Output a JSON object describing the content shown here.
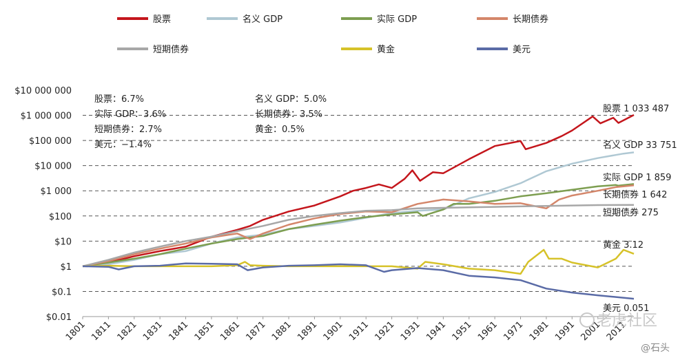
{
  "chart_data": {
    "type": "line",
    "yscale": "log",
    "ylim": [
      0.01,
      10000000
    ],
    "xlim": [
      1801,
      2015
    ],
    "grid": "horizontal-dashed",
    "legend_placement": "top",
    "ytick_labels": [
      "$10 000 000",
      "$1 000 000",
      "$100 000",
      "$10 000",
      "$1 000",
      "$100",
      "$10",
      "$1",
      "$0.1",
      "$0.01"
    ],
    "ytick_values": [
      10000000,
      1000000,
      100000,
      10000,
      1000,
      100,
      10,
      1,
      0.1,
      0.01
    ],
    "xtick_labels": [
      "1801",
      "1811",
      "1821",
      "1831",
      "1841",
      "1851",
      "1861",
      "1871",
      "1881",
      "1891",
      "1901",
      "1911",
      "1921",
      "1931",
      "1941",
      "1951",
      "1961",
      "1971",
      "1981",
      "1991",
      "2001",
      "2011"
    ],
    "notes_left": [
      "股票：6.7%",
      "实际 GDP：3.6%",
      "短期债券：2.7%",
      "美元：−1.4%"
    ],
    "notes_right": [
      "名义 GDP：5.0%",
      "长期债券：3.5%",
      "黄金：0.5%"
    ],
    "series": [
      {
        "name": "股票",
        "color": "#c4161c",
        "end_label": "股票 1 033 487",
        "points": [
          [
            1801,
            1
          ],
          [
            1811,
            1.4
          ],
          [
            1821,
            2.5
          ],
          [
            1831,
            4
          ],
          [
            1841,
            6
          ],
          [
            1851,
            15
          ],
          [
            1861,
            28
          ],
          [
            1866,
            40
          ],
          [
            1871,
            70
          ],
          [
            1881,
            150
          ],
          [
            1891,
            260
          ],
          [
            1901,
            600
          ],
          [
            1906,
            1000
          ],
          [
            1911,
            1300
          ],
          [
            1916,
            1800
          ],
          [
            1921,
            1300
          ],
          [
            1926,
            3000
          ],
          [
            1929,
            6500
          ],
          [
            1932,
            2500
          ],
          [
            1937,
            5500
          ],
          [
            1941,
            5000
          ],
          [
            1951,
            18000
          ],
          [
            1961,
            60000
          ],
          [
            1971,
            95000
          ],
          [
            1973,
            45000
          ],
          [
            1981,
            80000
          ],
          [
            1987,
            150000
          ],
          [
            1991,
            250000
          ],
          [
            1999,
            900000
          ],
          [
            2002,
            480000
          ],
          [
            2007,
            800000
          ],
          [
            2009,
            500000
          ],
          [
            2015,
            1033487
          ]
        ]
      },
      {
        "name": "名义 GDP",
        "color": "#afc8d3",
        "end_label": "名义 GDP 33 751",
        "points": [
          [
            1801,
            1
          ],
          [
            1811,
            1.2
          ],
          [
            1821,
            1.8
          ],
          [
            1831,
            3
          ],
          [
            1841,
            4
          ],
          [
            1851,
            8
          ],
          [
            1861,
            14
          ],
          [
            1871,
            18
          ],
          [
            1881,
            30
          ],
          [
            1891,
            40
          ],
          [
            1901,
            55
          ],
          [
            1911,
            85
          ],
          [
            1921,
            130
          ],
          [
            1931,
            160
          ],
          [
            1941,
            180
          ],
          [
            1951,
            500
          ],
          [
            1961,
            900
          ],
          [
            1971,
            2000
          ],
          [
            1981,
            6000
          ],
          [
            1991,
            12000
          ],
          [
            2001,
            20000
          ],
          [
            2011,
            30000
          ],
          [
            2015,
            33751
          ]
        ]
      },
      {
        "name": "实际 GDP",
        "color": "#7d9e50",
        "end_label": "实际 GDP 1 859",
        "points": [
          [
            1801,
            1
          ],
          [
            1811,
            1.4
          ],
          [
            1821,
            2
          ],
          [
            1831,
            3
          ],
          [
            1841,
            5
          ],
          [
            1851,
            8
          ],
          [
            1861,
            12
          ],
          [
            1871,
            16
          ],
          [
            1881,
            30
          ],
          [
            1891,
            45
          ],
          [
            1901,
            65
          ],
          [
            1911,
            90
          ],
          [
            1921,
            115
          ],
          [
            1931,
            140
          ],
          [
            1933,
            100
          ],
          [
            1941,
            180
          ],
          [
            1945,
            300
          ],
          [
            1951,
            300
          ],
          [
            1961,
            400
          ],
          [
            1971,
            600
          ],
          [
            1981,
            800
          ],
          [
            1991,
            1100
          ],
          [
            2001,
            1500
          ],
          [
            2008,
            1700
          ],
          [
            2009,
            1600
          ],
          [
            2015,
            1859
          ]
        ]
      },
      {
        "name": "长期债券",
        "color": "#d4866a",
        "end_label": "长期债券 1 642",
        "points": [
          [
            1801,
            1
          ],
          [
            1811,
            1.6
          ],
          [
            1821,
            3
          ],
          [
            1831,
            5
          ],
          [
            1841,
            8
          ],
          [
            1851,
            14
          ],
          [
            1861,
            20
          ],
          [
            1866,
            12
          ],
          [
            1871,
            20
          ],
          [
            1881,
            45
          ],
          [
            1891,
            80
          ],
          [
            1901,
            120
          ],
          [
            1911,
            150
          ],
          [
            1921,
            140
          ],
          [
            1931,
            300
          ],
          [
            1941,
            450
          ],
          [
            1951,
            380
          ],
          [
            1961,
            300
          ],
          [
            1971,
            320
          ],
          [
            1981,
            200
          ],
          [
            1986,
            450
          ],
          [
            1991,
            650
          ],
          [
            2001,
            1000
          ],
          [
            2008,
            1400
          ],
          [
            2015,
            1642
          ]
        ]
      },
      {
        "name": "短期债券",
        "color": "#a7a7a7",
        "end_label": "短期债券 275",
        "points": [
          [
            1801,
            1
          ],
          [
            1811,
            1.8
          ],
          [
            1821,
            3.5
          ],
          [
            1831,
            6
          ],
          [
            1841,
            10
          ],
          [
            1851,
            15
          ],
          [
            1861,
            25
          ],
          [
            1871,
            40
          ],
          [
            1881,
            70
          ],
          [
            1891,
            100
          ],
          [
            1901,
            130
          ],
          [
            1911,
            160
          ],
          [
            1921,
            170
          ],
          [
            1931,
            200
          ],
          [
            1941,
            210
          ],
          [
            1951,
            220
          ],
          [
            1961,
            230
          ],
          [
            1971,
            240
          ],
          [
            1981,
            250
          ],
          [
            1991,
            260
          ],
          [
            2001,
            270
          ],
          [
            2015,
            275
          ]
        ]
      },
      {
        "name": "黄金",
        "color": "#d6c229",
        "end_label": "黄金 3.12",
        "points": [
          [
            1801,
            1
          ],
          [
            1811,
            1.05
          ],
          [
            1821,
            1
          ],
          [
            1831,
            1
          ],
          [
            1841,
            1
          ],
          [
            1851,
            1
          ],
          [
            1861,
            1.1
          ],
          [
            1864,
            1.5
          ],
          [
            1866,
            1.1
          ],
          [
            1871,
            1.05
          ],
          [
            1881,
            1
          ],
          [
            1891,
            1
          ],
          [
            1901,
            1
          ],
          [
            1911,
            1
          ],
          [
            1921,
            1
          ],
          [
            1931,
            0.8
          ],
          [
            1934,
            1.5
          ],
          [
            1941,
            1.2
          ],
          [
            1951,
            0.8
          ],
          [
            1961,
            0.7
          ],
          [
            1971,
            0.5
          ],
          [
            1974,
            1.5
          ],
          [
            1980,
            4.5
          ],
          [
            1982,
            2.0
          ],
          [
            1987,
            2.0
          ],
          [
            1991,
            1.4
          ],
          [
            2001,
            0.9
          ],
          [
            2008,
            2.0
          ],
          [
            2011,
            4.5
          ],
          [
            2015,
            3.12
          ]
        ]
      },
      {
        "name": "美元",
        "color": "#5a6ba6",
        "end_label": "美元 0.051",
        "points": [
          [
            1801,
            1
          ],
          [
            1811,
            0.95
          ],
          [
            1815,
            0.75
          ],
          [
            1821,
            1
          ],
          [
            1831,
            1.05
          ],
          [
            1841,
            1.3
          ],
          [
            1851,
            1.25
          ],
          [
            1861,
            1.2
          ],
          [
            1865,
            0.7
          ],
          [
            1871,
            0.9
          ],
          [
            1881,
            1.05
          ],
          [
            1891,
            1.1
          ],
          [
            1901,
            1.2
          ],
          [
            1911,
            1.1
          ],
          [
            1918,
            0.6
          ],
          [
            1921,
            0.7
          ],
          [
            1931,
            0.85
          ],
          [
            1941,
            0.7
          ],
          [
            1951,
            0.42
          ],
          [
            1961,
            0.36
          ],
          [
            1971,
            0.28
          ],
          [
            1981,
            0.13
          ],
          [
            1991,
            0.09
          ],
          [
            2001,
            0.07
          ],
          [
            2015,
            0.051
          ]
        ]
      }
    ]
  },
  "watermark": {
    "main": "老虎社区",
    "sub": "@石头"
  }
}
